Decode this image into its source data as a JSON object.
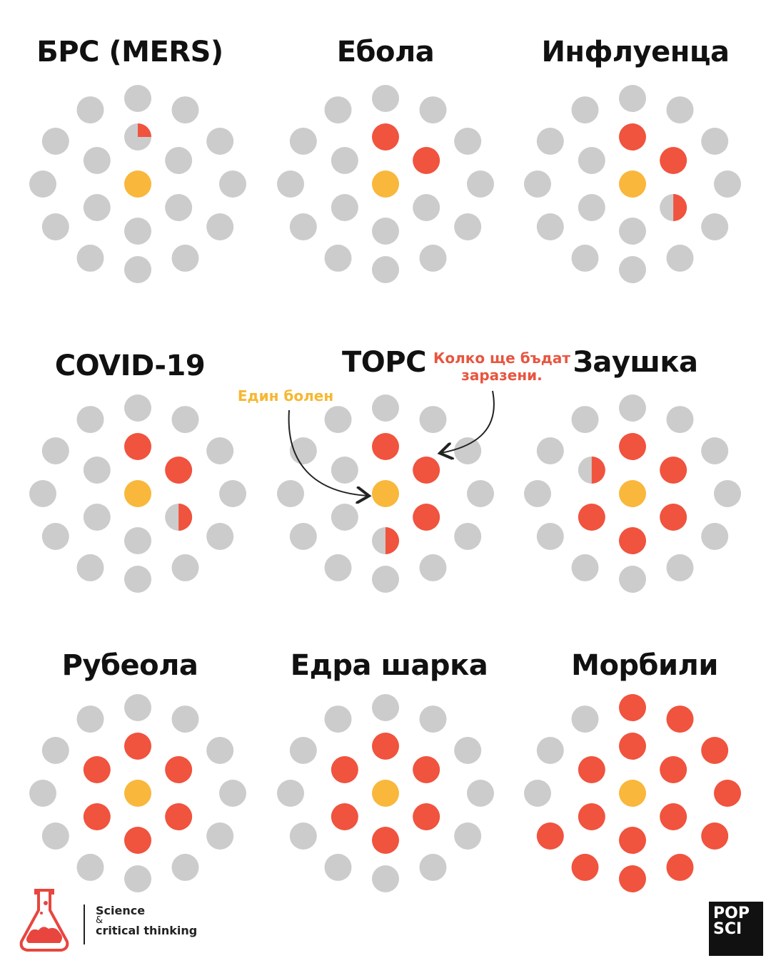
{
  "colors": {
    "gray": "#cccccc",
    "red": "#f0533e",
    "yellow": "#f9b73b",
    "annotation_red": "#e8553f",
    "annotation_yellow": "#f7b731"
  },
  "panels": [
    {
      "title": "БРС (MERS)",
      "infected": 0.25
    },
    {
      "title": "Ебола",
      "infected": 2
    },
    {
      "title": "Инфлуенца",
      "infected": 2.5
    },
    {
      "title": "COVID-19",
      "infected": 2.5
    },
    {
      "title": "ТОРС",
      "infected": 3.5
    },
    {
      "title": "Заушка",
      "infected": 5.5
    },
    {
      "title": "Рубеола",
      "infected": 6
    },
    {
      "title": "Едра шарка",
      "infected": 6
    },
    {
      "title": "Морбили",
      "infected": 15
    }
  ],
  "annotations": {
    "one_sick": "Един болен",
    "how_many_line1": "Колко ще бъдат",
    "how_many_line2": "заразени."
  },
  "footer": {
    "line1": "Science",
    "line2": "&",
    "line3": "critical thinking",
    "logo_icon": "flask-brain-icon",
    "popsci_line1": "POP",
    "popsci_line2": "SCI"
  }
}
